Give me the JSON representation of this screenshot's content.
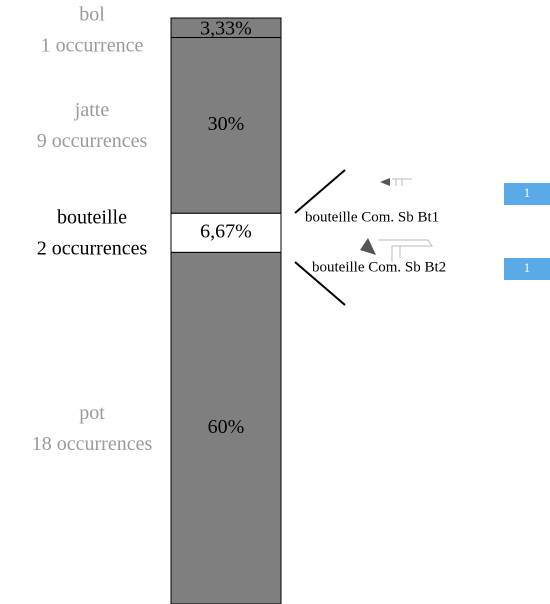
{
  "chart_data": {
    "type": "stacked-column",
    "ylim": [
      0,
      100
    ],
    "series": [
      {
        "name": "bol",
        "subtitle": "1 occurrence",
        "values": [
          3.33
        ],
        "value_labels": [
          "3,33%"
        ],
        "color": "#7f7f7f",
        "label_color": "#9a9a9a"
      },
      {
        "name": "jatte",
        "subtitle": "9 occurrences",
        "values": [
          30
        ],
        "value_labels": [
          "30%"
        ],
        "color": "#7f7f7f",
        "label_color": "#9a9a9a"
      },
      {
        "name": "bouteille",
        "subtitle": "2 occurrences",
        "values": [
          6.67
        ],
        "value_labels": [
          "6,67%"
        ],
        "color": "#ffffff",
        "label_color": "#000000"
      },
      {
        "name": "pot",
        "subtitle": "18 occurrences",
        "values": [
          60
        ],
        "value_labels": [
          "60%"
        ],
        "color": "#7f7f7f",
        "label_color": "#9a9a9a"
      }
    ],
    "details": [
      {
        "label": "bouteille Com. Sb Bt1",
        "count": "1"
      },
      {
        "label": "bouteille Com. Sb Bt2",
        "count": "1"
      }
    ]
  }
}
